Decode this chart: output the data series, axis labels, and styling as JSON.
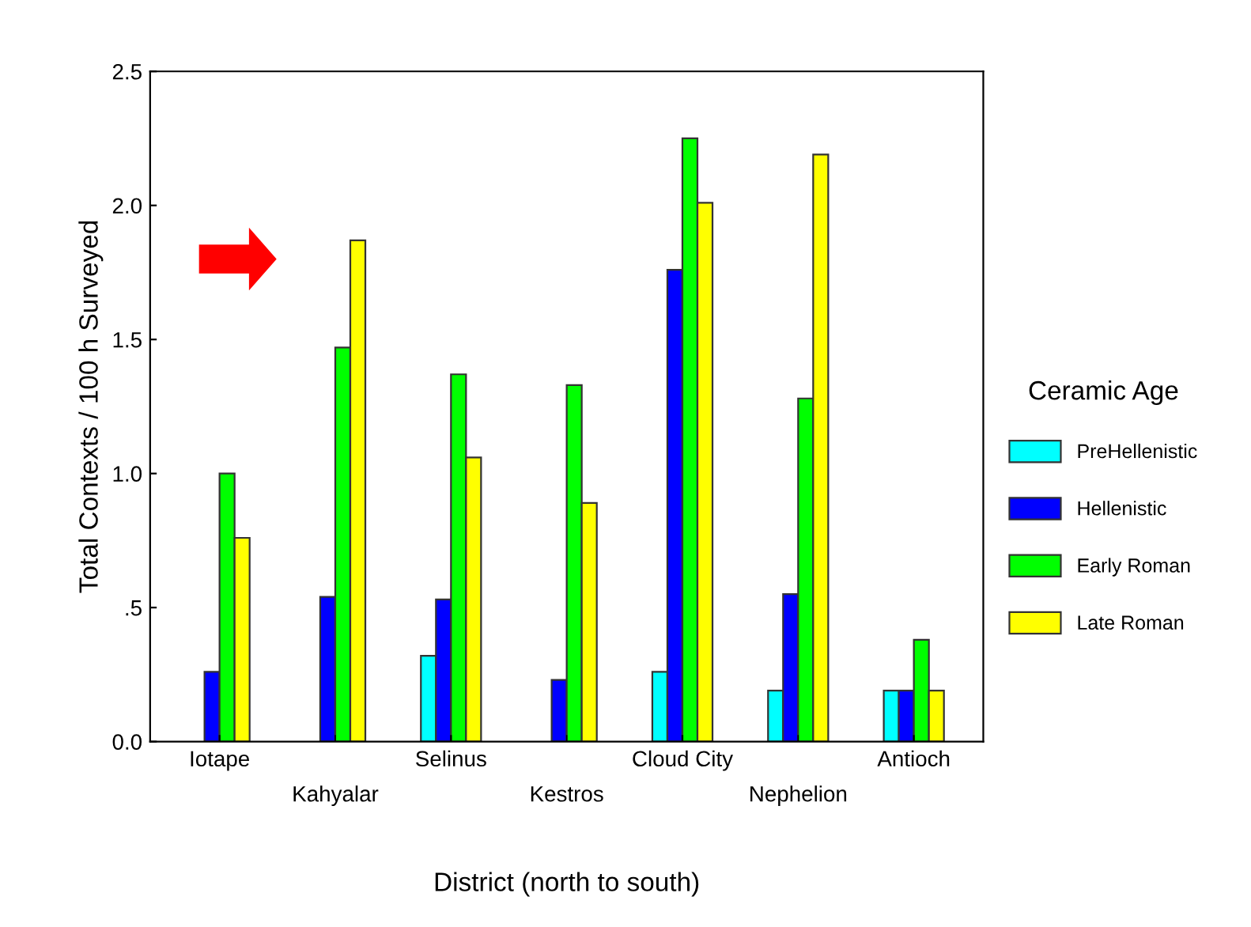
{
  "chart_data": {
    "type": "bar",
    "xlabel": "District (north to south)",
    "ylabel": "Total Contexts / 100 h Surveyed",
    "legend_title": "Ceramic Age",
    "categories": [
      "Iotape",
      "Kahyalar",
      "Selinus",
      "Kestros",
      "Cloud City",
      "Nephelion",
      "Antioch"
    ],
    "series": [
      {
        "name": "PreHellenistic",
        "color": "#00ffff",
        "values": [
          null,
          null,
          0.32,
          null,
          0.26,
          0.19,
          0.19
        ]
      },
      {
        "name": "Hellenistic",
        "color": "#0000ff",
        "values": [
          0.26,
          0.54,
          0.53,
          0.23,
          1.76,
          0.55,
          0.19
        ]
      },
      {
        "name": "Early Roman",
        "color": "#00ff00",
        "values": [
          1.0,
          1.47,
          1.37,
          1.33,
          2.25,
          1.28,
          0.38
        ]
      },
      {
        "name": "Late Roman",
        "color": "#ffff00",
        "values": [
          0.76,
          1.87,
          1.06,
          0.89,
          2.01,
          2.19,
          0.19
        ]
      }
    ],
    "ylim": [
      0,
      2.5
    ],
    "yticks": [
      {
        "value": 0,
        "label": "0.0"
      },
      {
        "value": 0.5,
        "label": ".5"
      },
      {
        "value": 1,
        "label": "1.0"
      },
      {
        "value": 1.5,
        "label": "1.5"
      },
      {
        "value": 2,
        "label": "2.0"
      },
      {
        "value": 2.5,
        "label": "2.5"
      }
    ],
    "legend": "right",
    "grid": false
  }
}
